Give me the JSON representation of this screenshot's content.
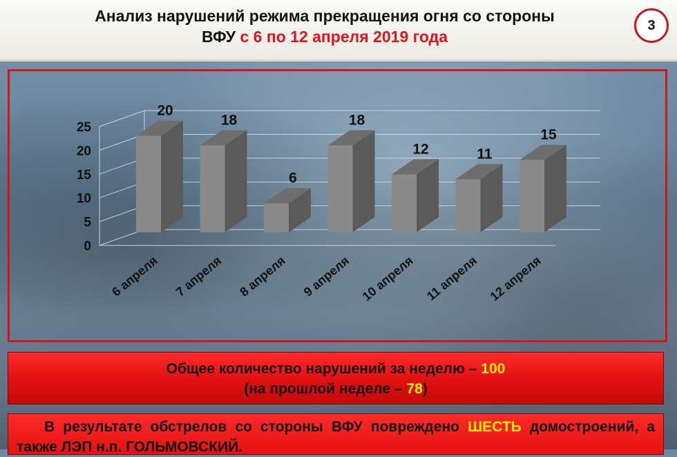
{
  "header": {
    "title_line1": "Анализ нарушений режима прекращения огня со стороны",
    "title_line2_black": "ВФУ",
    "title_line2_red": "с 6 по 12 апреля 2019 года",
    "page_number": "3"
  },
  "chart_data": {
    "type": "bar",
    "categories": [
      "6 апреля",
      "7 апреля",
      "8 апреля",
      "9 апреля",
      "10 апреля",
      "11 апреля",
      "12 апреля"
    ],
    "values": [
      20,
      18,
      6,
      18,
      12,
      11,
      15
    ],
    "value_labels": [
      "20",
      "18",
      "6",
      "18",
      "12",
      "11",
      "15"
    ],
    "y_ticks": [
      "0",
      "5",
      "10",
      "15",
      "20",
      "25"
    ],
    "ylim": [
      0,
      25
    ],
    "grid": true,
    "three_d": true,
    "bar_color": "#8a8a8a",
    "bar_top_color": "#6e6e6e",
    "bar_side_color": "#5a5a5a"
  },
  "summary": {
    "total_prefix": "Общее количество нарушений за неделю –",
    "total_value": "100",
    "previous_prefix": "(на прошлой неделе –",
    "previous_value": "78",
    "previous_suffix": ")"
  },
  "damage": {
    "text_prefix": "В результате обстрелов со стороны ВФУ повреждено",
    "highlight": "ШЕСТЬ",
    "text_suffix": "домостроений, а также ЛЭП н.п. ГОЛЬМОВСКИЙ."
  },
  "colors": {
    "accent_red": "#e0141c",
    "highlight_yellow": "#ffee00",
    "panel_red": "#e11010"
  }
}
